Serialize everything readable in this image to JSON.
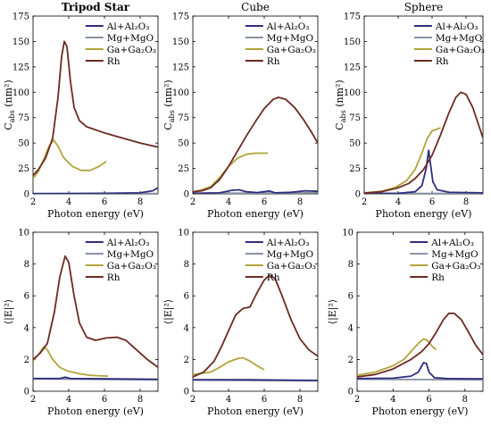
{
  "colors": {
    "al": "#2e2e7e",
    "mg": "#8891a5",
    "ga": "#b0a53a",
    "rh": "#6b2b22"
  },
  "legend_labels": [
    "Al+Al₂O₃",
    "Mg+MgO",
    "Ga+Ga₂O₃",
    "Rh"
  ],
  "chart_data": [
    {
      "type": "line",
      "title": "Tripod Star",
      "xlabel": "Photon energy (eV)",
      "ylabel": "C_abs (nm²)",
      "xlim": [
        2,
        9
      ],
      "ylim": [
        0,
        175
      ],
      "xticks": [
        "2",
        "4",
        "6",
        "8"
      ],
      "yticks": [
        "0",
        "25",
        "50",
        "75",
        "100",
        "125",
        "150",
        "175"
      ],
      "legend_position": "top-right",
      "series": [
        {
          "name": "Al+Al₂O₃",
          "key": "al",
          "points": [
            [
              2,
              0.2
            ],
            [
              4,
              0.3
            ],
            [
              6,
              0.5
            ],
            [
              8,
              1
            ],
            [
              8.7,
              3
            ],
            [
              9,
              6
            ]
          ]
        },
        {
          "name": "Mg+MgO",
          "key": "mg",
          "points": [
            [
              2,
              0.2
            ],
            [
              9,
              0.3
            ]
          ]
        },
        {
          "name": "Ga+Ga₂O₃",
          "key": "ga",
          "points": [
            [
              2,
              15
            ],
            [
              2.3,
              22
            ],
            [
              2.6,
              34
            ],
            [
              2.9,
              47
            ],
            [
              3.15,
              53
            ],
            [
              3.4,
              47
            ],
            [
              3.7,
              36
            ],
            [
              4.2,
              27
            ],
            [
              4.7,
              23
            ],
            [
              5.2,
              23
            ],
            [
              5.7,
              27
            ],
            [
              6.1,
              32
            ]
          ]
        },
        {
          "name": "Rh",
          "key": "rh",
          "points": [
            [
              2,
              18
            ],
            [
              2.3,
              24
            ],
            [
              2.7,
              35
            ],
            [
              3.1,
              55
            ],
            [
              3.4,
              95
            ],
            [
              3.6,
              135
            ],
            [
              3.75,
              150
            ],
            [
              3.9,
              145
            ],
            [
              4.1,
              110
            ],
            [
              4.3,
              85
            ],
            [
              4.6,
              72
            ],
            [
              5,
              66
            ],
            [
              6,
              60
            ],
            [
              7,
              55
            ],
            [
              8,
              50
            ],
            [
              9,
              46
            ]
          ]
        }
      ]
    },
    {
      "type": "line",
      "title": "Cube",
      "xlabel": "Photon energy (eV)",
      "ylabel": "C_abs (nm²)",
      "xlim": [
        2,
        9
      ],
      "ylim": [
        0,
        175
      ],
      "xticks": [
        "2",
        "4",
        "6",
        "8"
      ],
      "yticks": [
        "0",
        "25",
        "50",
        "75",
        "100",
        "125",
        "150",
        "175"
      ],
      "legend_position": "top-right",
      "series": [
        {
          "name": "Al+Al₂O₃",
          "key": "al",
          "points": [
            [
              2,
              0.5
            ],
            [
              3.5,
              1
            ],
            [
              4.2,
              3.5
            ],
            [
              4.6,
              4
            ],
            [
              5,
              2
            ],
            [
              5.6,
              1.2
            ],
            [
              6.3,
              2.8
            ],
            [
              6.6,
              1
            ],
            [
              7.5,
              1.5
            ],
            [
              8.3,
              3
            ],
            [
              9,
              2.5
            ]
          ]
        },
        {
          "name": "Mg+MgO",
          "key": "mg",
          "points": [
            [
              2,
              0.5
            ],
            [
              9,
              1
            ]
          ]
        },
        {
          "name": "Ga+Ga₂O₃",
          "key": "ga",
          "points": [
            [
              2,
              2
            ],
            [
              2.5,
              4
            ],
            [
              3,
              7
            ],
            [
              3.5,
              16
            ],
            [
              4,
              27
            ],
            [
              4.5,
              35
            ],
            [
              5,
              39
            ],
            [
              5.5,
              40
            ],
            [
              6.2,
              40
            ]
          ]
        },
        {
          "name": "Rh",
          "key": "rh",
          "points": [
            [
              2,
              2
            ],
            [
              2.5,
              3
            ],
            [
              3,
              6
            ],
            [
              3.5,
              14
            ],
            [
              4,
              27
            ],
            [
              4.5,
              42
            ],
            [
              5,
              57
            ],
            [
              5.5,
              71
            ],
            [
              6,
              84
            ],
            [
              6.5,
              93
            ],
            [
              6.8,
              95
            ],
            [
              7.2,
              93
            ],
            [
              7.7,
              85
            ],
            [
              8.2,
              73
            ],
            [
              8.6,
              62
            ],
            [
              9,
              50
            ]
          ]
        }
      ]
    },
    {
      "type": "line",
      "title": "Sphere",
      "xlabel": "Photon energy (eV)",
      "ylabel": "C_abs (nm²)",
      "xlim": [
        2,
        9
      ],
      "ylim": [
        0,
        175
      ],
      "xticks": [
        "2",
        "4",
        "6",
        "8"
      ],
      "yticks": [
        "0",
        "25",
        "50",
        "75",
        "100",
        "125",
        "150",
        "175"
      ],
      "legend_position": "top-right",
      "series": [
        {
          "name": "Al+Al₂O₃",
          "key": "al",
          "points": [
            [
              2,
              0.3
            ],
            [
              4,
              0.5
            ],
            [
              5,
              2
            ],
            [
              5.4,
              8
            ],
            [
              5.65,
              25
            ],
            [
              5.8,
              43
            ],
            [
              5.9,
              30
            ],
            [
              6.05,
              12
            ],
            [
              6.3,
              4
            ],
            [
              7,
              1.5
            ],
            [
              9,
              1
            ]
          ]
        },
        {
          "name": "Mg+MgO",
          "key": "mg",
          "points": [
            [
              2,
              0.3
            ],
            [
              9,
              0.5
            ]
          ]
        },
        {
          "name": "Ga+Ga₂O₃",
          "key": "ga",
          "points": [
            [
              2,
              1
            ],
            [
              3,
              2.5
            ],
            [
              3.8,
              6
            ],
            [
              4.5,
              13
            ],
            [
              5,
              24
            ],
            [
              5.4,
              40
            ],
            [
              5.7,
              54
            ],
            [
              6,
              62
            ],
            [
              6.5,
              65
            ]
          ]
        },
        {
          "name": "Rh",
          "key": "rh",
          "points": [
            [
              2,
              0.8
            ],
            [
              3,
              2
            ],
            [
              4,
              6
            ],
            [
              4.6,
              10
            ],
            [
              5,
              15
            ],
            [
              5.5,
              24
            ],
            [
              6,
              38
            ],
            [
              6.5,
              58
            ],
            [
              7,
              80
            ],
            [
              7.4,
              95
            ],
            [
              7.7,
              100
            ],
            [
              8,
              98
            ],
            [
              8.4,
              85
            ],
            [
              8.8,
              65
            ],
            [
              9,
              55
            ]
          ]
        }
      ]
    },
    {
      "type": "line",
      "title": "",
      "xlabel": "Photon energy (eV)",
      "ylabel": "⟨|E|²⟩",
      "xlim": [
        2,
        9
      ],
      "ylim": [
        0,
        10
      ],
      "xticks": [
        "2",
        "4",
        "6",
        "8"
      ],
      "yticks": [
        "0",
        "2",
        "4",
        "6",
        "8",
        "10"
      ],
      "legend_position": "top-right",
      "series": [
        {
          "name": "Al+Al₂O₃",
          "key": "al",
          "points": [
            [
              2,
              0.8
            ],
            [
              3.5,
              0.8
            ],
            [
              3.8,
              0.88
            ],
            [
              4.1,
              0.8
            ],
            [
              9,
              0.75
            ]
          ]
        },
        {
          "name": "Mg+MgO",
          "key": "mg",
          "points": [
            [
              2,
              0.78
            ],
            [
              9,
              0.72
            ]
          ]
        },
        {
          "name": "Ga+Ga₂O₃",
          "key": "ga",
          "points": [
            [
              2,
              1.9
            ],
            [
              2.3,
              2.3
            ],
            [
              2.6,
              2.8
            ],
            [
              2.8,
              2.6
            ],
            [
              3.1,
              2
            ],
            [
              3.5,
              1.5
            ],
            [
              4,
              1.25
            ],
            [
              4.6,
              1.1
            ],
            [
              5.2,
              1
            ],
            [
              6.2,
              0.95
            ]
          ]
        },
        {
          "name": "Rh",
          "key": "rh",
          "points": [
            [
              2,
              2
            ],
            [
              2.4,
              2.4
            ],
            [
              2.8,
              3
            ],
            [
              3.2,
              5
            ],
            [
              3.5,
              7.2
            ],
            [
              3.8,
              8.5
            ],
            [
              4,
              8.1
            ],
            [
              4.3,
              6
            ],
            [
              4.6,
              4.3
            ],
            [
              5,
              3.4
            ],
            [
              5.5,
              3.2
            ],
            [
              6.1,
              3.35
            ],
            [
              6.7,
              3.4
            ],
            [
              7.2,
              3.2
            ],
            [
              7.8,
              2.6
            ],
            [
              8.4,
              2
            ],
            [
              9,
              1.5
            ]
          ]
        }
      ]
    },
    {
      "type": "line",
      "title": "",
      "xlabel": "Photon energy (eV)",
      "ylabel": "⟨|E|²⟩",
      "xlim": [
        2,
        9
      ],
      "ylim": [
        0,
        10
      ],
      "xticks": [
        "2",
        "4",
        "6",
        "8"
      ],
      "yticks": [
        "0",
        "2",
        "4",
        "6",
        "8",
        "10"
      ],
      "legend_position": "top-right",
      "series": [
        {
          "name": "Al+Al₂O₃",
          "key": "al",
          "points": [
            [
              2,
              0.72
            ],
            [
              5,
              0.72
            ],
            [
              9,
              0.68
            ]
          ]
        },
        {
          "name": "Mg+MgO",
          "key": "mg",
          "points": [
            [
              2,
              0.7
            ],
            [
              9,
              0.65
            ]
          ]
        },
        {
          "name": "Ga+Ga₂O₃",
          "key": "ga",
          "points": [
            [
              2,
              1.05
            ],
            [
              3,
              1.2
            ],
            [
              3.5,
              1.5
            ],
            [
              4,
              1.85
            ],
            [
              4.5,
              2.05
            ],
            [
              4.8,
              2.1
            ],
            [
              5.2,
              1.9
            ],
            [
              5.6,
              1.6
            ],
            [
              6,
              1.35
            ]
          ]
        },
        {
          "name": "Rh",
          "key": "rh",
          "points": [
            [
              2,
              0.9
            ],
            [
              2.6,
              1.2
            ],
            [
              3.2,
              1.9
            ],
            [
              3.6,
              2.8
            ],
            [
              4,
              3.8
            ],
            [
              4.4,
              4.8
            ],
            [
              4.8,
              5.2
            ],
            [
              5.2,
              5.3
            ],
            [
              5.6,
              6.2
            ],
            [
              6,
              7
            ],
            [
              6.3,
              7.3
            ],
            [
              6.6,
              7.1
            ],
            [
              7,
              6
            ],
            [
              7.5,
              4.5
            ],
            [
              8,
              3.3
            ],
            [
              8.5,
              2.6
            ],
            [
              9,
              2.2
            ]
          ]
        }
      ]
    },
    {
      "type": "line",
      "title": "",
      "xlabel": "Photon energy (eV)",
      "ylabel": "⟨|E|²⟩",
      "xlim": [
        2,
        9
      ],
      "ylim": [
        0,
        10
      ],
      "xticks": [
        "2",
        "4",
        "6",
        "8"
      ],
      "yticks": [
        "0",
        "2",
        "4",
        "6",
        "8",
        "10"
      ],
      "legend_position": "top-right",
      "series": [
        {
          "name": "Al+Al₂O₃",
          "key": "al",
          "points": [
            [
              2,
              0.8
            ],
            [
              4,
              0.82
            ],
            [
              5,
              0.95
            ],
            [
              5.4,
              1.2
            ],
            [
              5.7,
              1.8
            ],
            [
              5.85,
              1.75
            ],
            [
              6,
              1.2
            ],
            [
              6.3,
              0.85
            ],
            [
              7,
              0.8
            ],
            [
              9,
              0.78
            ]
          ]
        },
        {
          "name": "Mg+MgO",
          "key": "mg",
          "points": [
            [
              2,
              0.75
            ],
            [
              9,
              0.72
            ]
          ]
        },
        {
          "name": "Ga+Ga₂O₃",
          "key": "ga",
          "points": [
            [
              2,
              1
            ],
            [
              3,
              1.2
            ],
            [
              4,
              1.6
            ],
            [
              4.6,
              2
            ],
            [
              5,
              2.5
            ],
            [
              5.4,
              3
            ],
            [
              5.7,
              3.3
            ],
            [
              5.9,
              3.2
            ],
            [
              6.2,
              2.8
            ],
            [
              6.4,
              2.6
            ]
          ]
        },
        {
          "name": "Rh",
          "key": "rh",
          "points": [
            [
              2,
              0.9
            ],
            [
              3,
              1.05
            ],
            [
              4,
              1.4
            ],
            [
              5,
              2
            ],
            [
              5.6,
              2.5
            ],
            [
              6,
              3
            ],
            [
              6.4,
              3.7
            ],
            [
              6.8,
              4.5
            ],
            [
              7.1,
              4.9
            ],
            [
              7.4,
              4.9
            ],
            [
              7.8,
              4.5
            ],
            [
              8.2,
              3.7
            ],
            [
              8.6,
              2.9
            ],
            [
              9,
              2.3
            ]
          ]
        }
      ]
    }
  ]
}
